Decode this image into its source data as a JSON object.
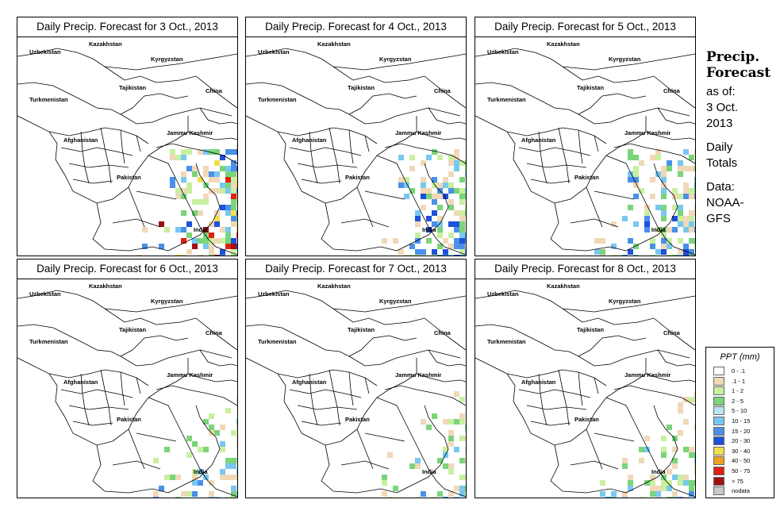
{
  "panels": [
    {
      "title": "Daily Precip. Forecast for  3 Oct., 2013",
      "intensity": "high"
    },
    {
      "title": "Daily Precip. Forecast for  4 Oct., 2013",
      "intensity": "medium"
    },
    {
      "title": "Daily Precip. Forecast for  5 Oct., 2013",
      "intensity": "medium"
    },
    {
      "title": "Daily Precip. Forecast for  6 Oct., 2013",
      "intensity": "low"
    },
    {
      "title": "Daily Precip. Forecast for  7 Oct., 2013",
      "intensity": "low"
    },
    {
      "title": "Daily Precip. Forecast for  8 Oct., 2013",
      "intensity": "low"
    }
  ],
  "map_labels": {
    "uzbekistan": "Uzbekistan",
    "kazakhstan": "Kazakhstan",
    "kyrgyzstan": "Kyrgyzstan",
    "tajikistan": "Tajikistan",
    "turkmenistan": "Turkmenistan",
    "china": "China",
    "afghanistan": "Afghanistan",
    "jammu_kashmir": "Jammu Kashmir",
    "pakistan": "Pakistan",
    "india": "India"
  },
  "sidebar": {
    "line1": "Precip.",
    "line2": "Forecast",
    "line3": "as of:",
    "line4": "3 Oct.",
    "line5": "2013",
    "line6": "Daily",
    "line7": "Totals",
    "line8": "Data:",
    "line9": "NOAA-",
    "line10": "GFS"
  },
  "legend": {
    "title": "PPT (mm)",
    "items": [
      {
        "label": "0 - .1",
        "color": "#ffffff"
      },
      {
        "label": ".1 - 1",
        "color": "#f0d8b8"
      },
      {
        "label": "1 - 2",
        "color": "#c8f0a0"
      },
      {
        "label": "2 - 5",
        "color": "#7ad47a"
      },
      {
        "label": "5 - 10",
        "color": "#b8e8f0"
      },
      {
        "label": "10 - 15",
        "color": "#78c8f0"
      },
      {
        "label": "15 - 20",
        "color": "#4a90e8"
      },
      {
        "label": "20 - 30",
        "color": "#1e50d8"
      },
      {
        "label": "30 - 40",
        "color": "#f0e050"
      },
      {
        "label": "40 - 50",
        "color": "#f0a020"
      },
      {
        "label": "50 - 75",
        "color": "#e02010"
      },
      {
        "label": "> 75",
        "color": "#a01010"
      },
      {
        "label": "nodata",
        "color": "#c8c8c8"
      }
    ]
  }
}
